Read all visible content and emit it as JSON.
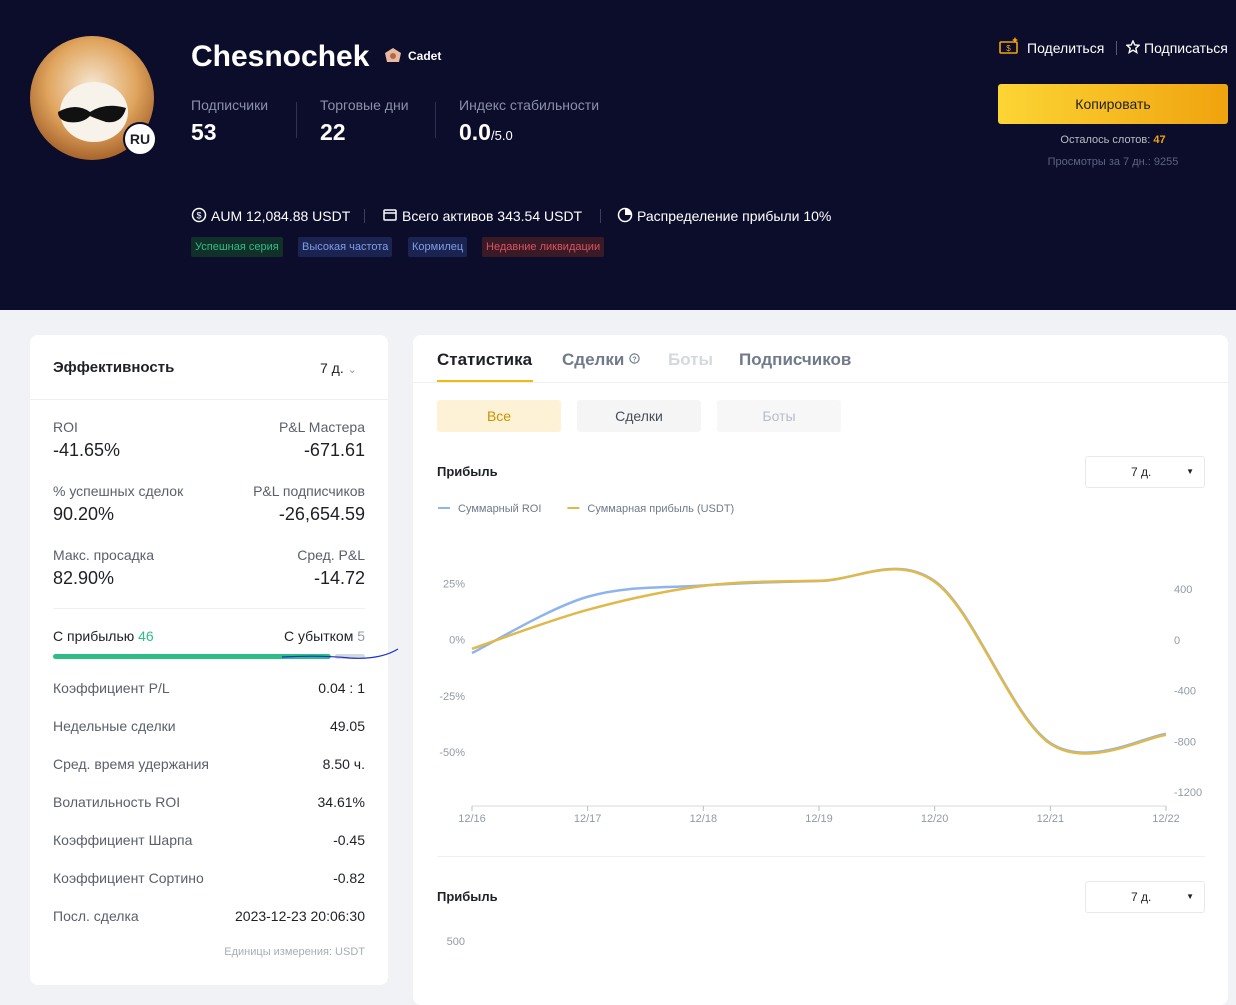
{
  "profile": {
    "name": "Chesnochek",
    "badge": "Cadet",
    "avatar_label": "RU",
    "stats": [
      {
        "label": "Подписчики",
        "value": "53"
      },
      {
        "label": "Торговые дни",
        "value": "22"
      },
      {
        "label": "Индекс стабильности",
        "value": "0.0",
        "suffix": "/5.0"
      }
    ],
    "info": [
      "AUM 12,084.88 USDT",
      "Всего активов 343.54 USDT",
      "Распределение прибыли 10%"
    ],
    "tags": [
      "Успешная серия",
      "Высокая частота",
      "Кормилец",
      "Недавние ликвидации"
    ]
  },
  "actions": {
    "share": "Поделиться",
    "subscribe": "Подписаться",
    "copy": "Копировать",
    "slots_label": "Осталось слотов:",
    "slots": "47",
    "views": "Просмотры за 7 дн.: 9255"
  },
  "performance": {
    "title": "Эффективность",
    "period": "7 д.",
    "metrics": [
      {
        "label": "ROI",
        "value": "-41.65%"
      },
      {
        "label": "P&L Мастера",
        "value": "-671.61"
      },
      {
        "label": "% успешных сделок",
        "value": "90.20%"
      },
      {
        "label": "P&L подписчиков",
        "value": "-26,654.59"
      },
      {
        "label": "Макс. просадка",
        "value": "82.90%"
      },
      {
        "label": "Сред. P&L",
        "value": "-14.72"
      }
    ],
    "win_label": "С прибылью",
    "win": 46,
    "loss_label": "С убытком",
    "loss": 5,
    "rows": [
      {
        "label": "Коэффициент P/L",
        "value": "0.04 : 1"
      },
      {
        "label": "Недельные сделки",
        "value": "49.05"
      },
      {
        "label": "Сред. время удержания",
        "value": "8.50 ч."
      },
      {
        "label": "Волатильность ROI",
        "value": "34.61%"
      },
      {
        "label": "Коэффициент Шарпа",
        "value": "-0.45"
      },
      {
        "label": "Коэффициент Сортино",
        "value": "-0.82"
      },
      {
        "label": "Посл. сделка",
        "value": "2023-12-23 20:06:30"
      }
    ],
    "unit_note": "Единицы измерения: USDT"
  },
  "tabs": [
    "Статистика",
    "Сделки",
    "Боты",
    "Подписчиков"
  ],
  "filters": [
    "Все",
    "Сделки",
    "Боты"
  ],
  "chart_data": [
    {
      "type": "line",
      "title": "Прибыль",
      "period": "7 д.",
      "categories": [
        "12/16",
        "12/17",
        "12/18",
        "12/19",
        "12/20",
        "12/21",
        "12/22"
      ],
      "series": [
        {
          "name": "Суммарный ROI",
          "color": "#8db4ef",
          "axis": "y",
          "values": [
            -6,
            19,
            24,
            26,
            26,
            -46,
            -42
          ]
        },
        {
          "name": "Суммарная прибыль (USDT)",
          "color": "#e0b94a",
          "axis": "y2",
          "values": [
            -71,
            236,
            425,
            465,
            457,
            -820,
            -750
          ]
        }
      ],
      "ylim": [
        -74,
        42
      ],
      "yticks": [
        {
          "value": 25,
          "label": "25%"
        },
        {
          "value": 0,
          "label": "0%"
        },
        {
          "value": -25,
          "label": "-25%"
        },
        {
          "value": -50,
          "label": "-50%"
        }
      ],
      "y2lim": [
        -1310,
        747
      ],
      "y2ticks": [
        400,
        0,
        -400,
        -800,
        -1200
      ]
    },
    {
      "type": "bar",
      "title": "Прибыль",
      "period": "7 д.",
      "yticks": [
        500
      ]
    }
  ]
}
